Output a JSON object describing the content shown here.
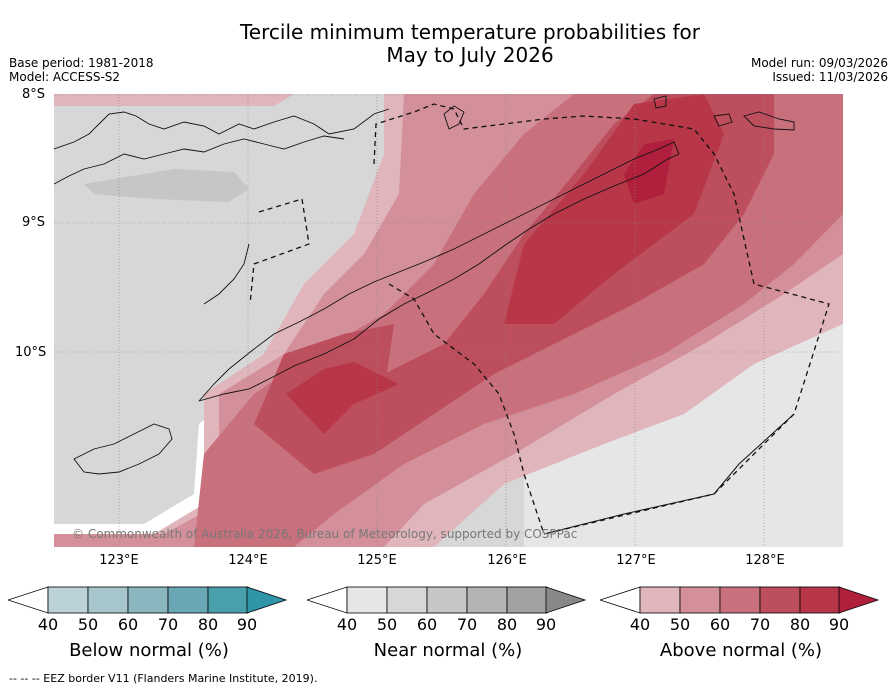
{
  "title_line1": "Tercile minimum temperature probabilities for",
  "title_line2": "May to July 2026",
  "meta_left": {
    "base_period": "Base period: 1981-2018",
    "model": "Model: ACCESS-S2"
  },
  "meta_right": {
    "model_run": "Model run: 09/03/2026",
    "issued": "Issued: 11/03/2026"
  },
  "map": {
    "lat_labels": [
      "8°S",
      "9°S",
      "10°S"
    ],
    "lon_labels": [
      "123°E",
      "124°E",
      "125°E",
      "126°E",
      "127°E",
      "128°E"
    ],
    "copyright": "© Commonwealth of Australia 2026, Bureau of Meteorology, supported by COSPPac"
  },
  "colorbars": [
    {
      "label": "Below normal (%)",
      "ticks": [
        "40",
        "50",
        "60",
        "70",
        "80",
        "90"
      ],
      "colors": [
        "#bcd2d9",
        "#a6c6cc",
        "#8ab6c0",
        "#6aa7b4",
        "#4a9fad",
        "#2f96a8"
      ]
    },
    {
      "label": "Near normal (%)",
      "ticks": [
        "40",
        "50",
        "60",
        "70",
        "80",
        "90"
      ],
      "colors": [
        "#e6e6e6",
        "#d7d7d7",
        "#c6c6c6",
        "#b4b4b4",
        "#a2a2a2",
        "#888888"
      ]
    },
    {
      "label": "Above normal (%)",
      "ticks": [
        "40",
        "50",
        "60",
        "70",
        "80",
        "90"
      ],
      "colors": [
        "#e0b5bb",
        "#d4909a",
        "#c8707c",
        "#bd4e5e",
        "#b73749",
        "#b0203c"
      ]
    }
  ],
  "footnote": "--  --  -- EEZ border V11 (Flanders Marine Institute, 2019)."
}
